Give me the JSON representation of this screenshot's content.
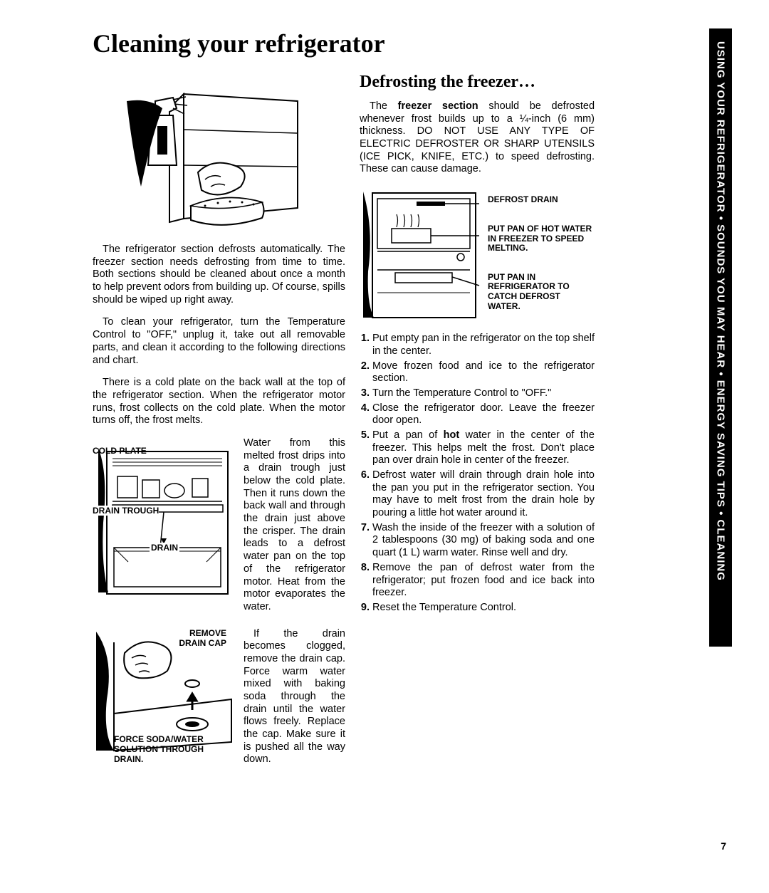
{
  "title": "Cleaning your refrigerator",
  "sideTab": "USING YOUR REFRIGERATOR • SOUNDS YOU MAY HEAR • ENERGY SAVING TIPS • CLEANING",
  "pageNumber": "7",
  "leftCol": {
    "para1": "The refrigerator section defrosts automatically. The freezer section needs defrosting from time to time. Both sections should be cleaned about once a month to help prevent odors from building up. Of course, spills should be wiped up right away.",
    "para2": "To clean your refrigerator, turn the Temperature Control to \"OFF,\" unplug it, take out all removable parts, and clean it according to the following directions and chart.",
    "para3": "There is a cold plate on the back wall at the top of the refrigerator section. When the refrigerator motor runs, frost collects on the cold plate. When the motor turns off, the frost melts.",
    "coldPlateDiagram": {
      "labelColdPlate": "COLD PLATE",
      "labelDrainTrough": "DRAIN TROUGH",
      "labelDrain": "DRAIN",
      "text": "Water from this melted frost drips into a drain trough just below the cold plate. Then it runs down the back wall and through the drain just above the crisper. The drain leads to a defrost water pan on the top of the refrigerator motor. Heat from the motor evaporates the water."
    },
    "drainCapDiagram": {
      "labelRemove": "REMOVE DRAIN CAP",
      "labelForce": "FORCE SODA/WATER SOLUTION THROUGH DRAIN.",
      "text": "If the drain becomes clogged, remove the drain cap. Force warm water mixed with baking soda through the drain until the water flows freely. Replace the cap. Make sure it is pushed all the way down."
    }
  },
  "rightCol": {
    "subtitle": "Defrosting the freezer…",
    "introHtml": "The <b>freezer section</b> should be defrosted whenever frost builds up to a ¼-inch (6 mm) thickness. DO NOT USE ANY TYPE OF ELECTRIC DEFROSTER OR SHARP UTENSILS (ICE PICK, KNIFE, ETC.) to speed defrosting. These can cause damage.",
    "freezerDiagram": {
      "label1": "DEFROST DRAIN",
      "label2": "PUT PAN OF HOT WATER IN FREEZER TO SPEED MELTING.",
      "label3": "PUT PAN IN REFRIGERATOR TO CATCH DEFROST WATER."
    },
    "steps": [
      "Put empty pan in the refrigerator on the top shelf in the center.",
      "Move frozen food and ice to the refrigerator section.",
      "Turn the Temperature Control to \"OFF.\"",
      "Close the refrigerator door. Leave the freezer door open.",
      "Put a pan of <b>hot</b> water in the center of the freezer. This helps melt the frost. Don't place pan over drain hole in center of the freezer.",
      "Defrost water will drain through drain hole into the pan you put in the refrigerator section. You may have to melt frost from the drain hole by pouring a little hot water around it.",
      "Wash the inside of the freezer with a solution of 2 tablespoons (30 mg) of baking soda and one quart (1 L) warm water. Rinse well and dry.",
      "Remove the pan of defrost water from the refrigerator; put frozen food and ice back into freezer.",
      "Reset the Temperature Control."
    ]
  }
}
